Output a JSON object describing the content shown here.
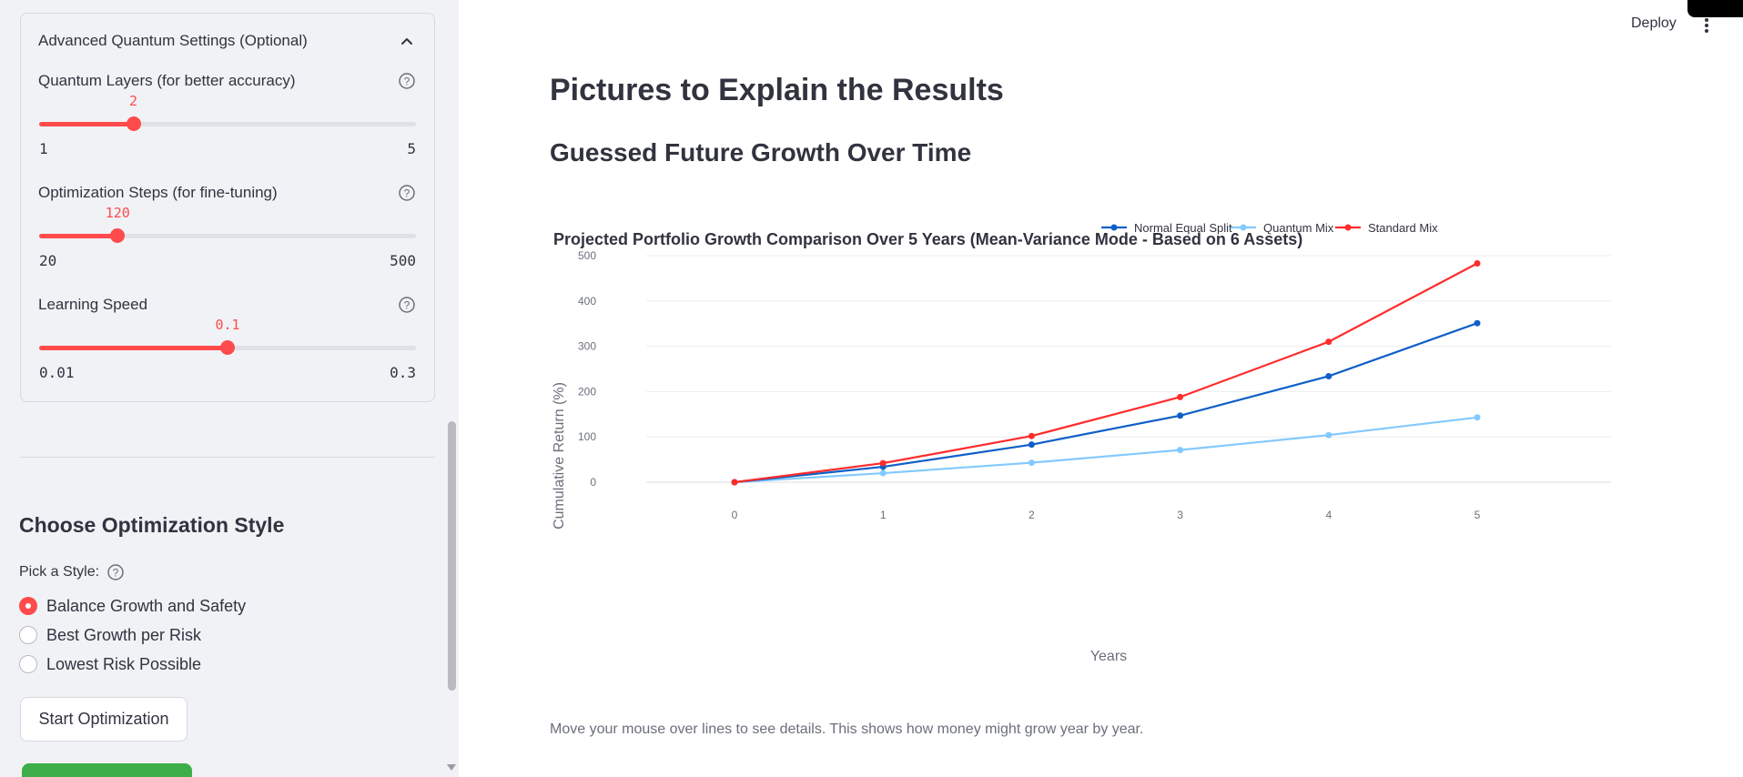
{
  "sidebar": {
    "advanced": {
      "title": "Advanced Quantum Settings (Optional)",
      "sliders": [
        {
          "label": "Quantum Layers (for better accuracy)",
          "value": "2",
          "min": "1",
          "max": "5",
          "fraction": 0.25
        },
        {
          "label": "Optimization Steps (for fine-tuning)",
          "value": "120",
          "min": "20",
          "max": "500",
          "fraction": 0.2083
        },
        {
          "label": "Learning Speed",
          "value": "0.1",
          "min": "0.01",
          "max": "0.3",
          "fraction": 0.5
        }
      ]
    },
    "style_section": {
      "heading": "Choose Optimization Style",
      "pick_label": "Pick a Style:",
      "options": [
        {
          "label": "Balance Growth and Safety",
          "selected": true
        },
        {
          "label": "Best Growth per Risk",
          "selected": false
        },
        {
          "label": "Lowest Risk Possible",
          "selected": false
        }
      ],
      "start_button": "Start Optimization"
    }
  },
  "header": {
    "deploy_label": "Deploy"
  },
  "main": {
    "heading": "Pictures to Explain the Results",
    "subheading": "Guessed Future Growth Over Time",
    "caption": "Move your mouse over lines to see details. This shows how money might grow year by year."
  },
  "colors": {
    "accent": "#ff4b4b",
    "normal": "#0e5fc7",
    "quantum": "#83c9ff",
    "standard": "#ff2b2b"
  },
  "chart_data": {
    "type": "line",
    "title": "Projected Portfolio Growth Comparison Over 5 Years (Mean-Variance Mode - Based on 6 Assets)",
    "xlabel": "Years",
    "ylabel": "Cumulative Return (%)",
    "x": [
      0,
      1,
      2,
      3,
      4,
      5
    ],
    "ylim": [
      -20,
      520
    ],
    "yticks": [
      0,
      100,
      200,
      300,
      400,
      500
    ],
    "grid": true,
    "legend_position": "top-right",
    "series": [
      {
        "name": "Normal Equal Split",
        "color": "#0e5fc7",
        "values": [
          0,
          34,
          83,
          147,
          234,
          351
        ]
      },
      {
        "name": "Quantum Mix",
        "color": "#83c9ff",
        "values": [
          0,
          20,
          43,
          71,
          104,
          143
        ]
      },
      {
        "name": "Standard Mix",
        "color": "#ff2b2b",
        "values": [
          0,
          42,
          102,
          188,
          310,
          483
        ]
      }
    ]
  }
}
